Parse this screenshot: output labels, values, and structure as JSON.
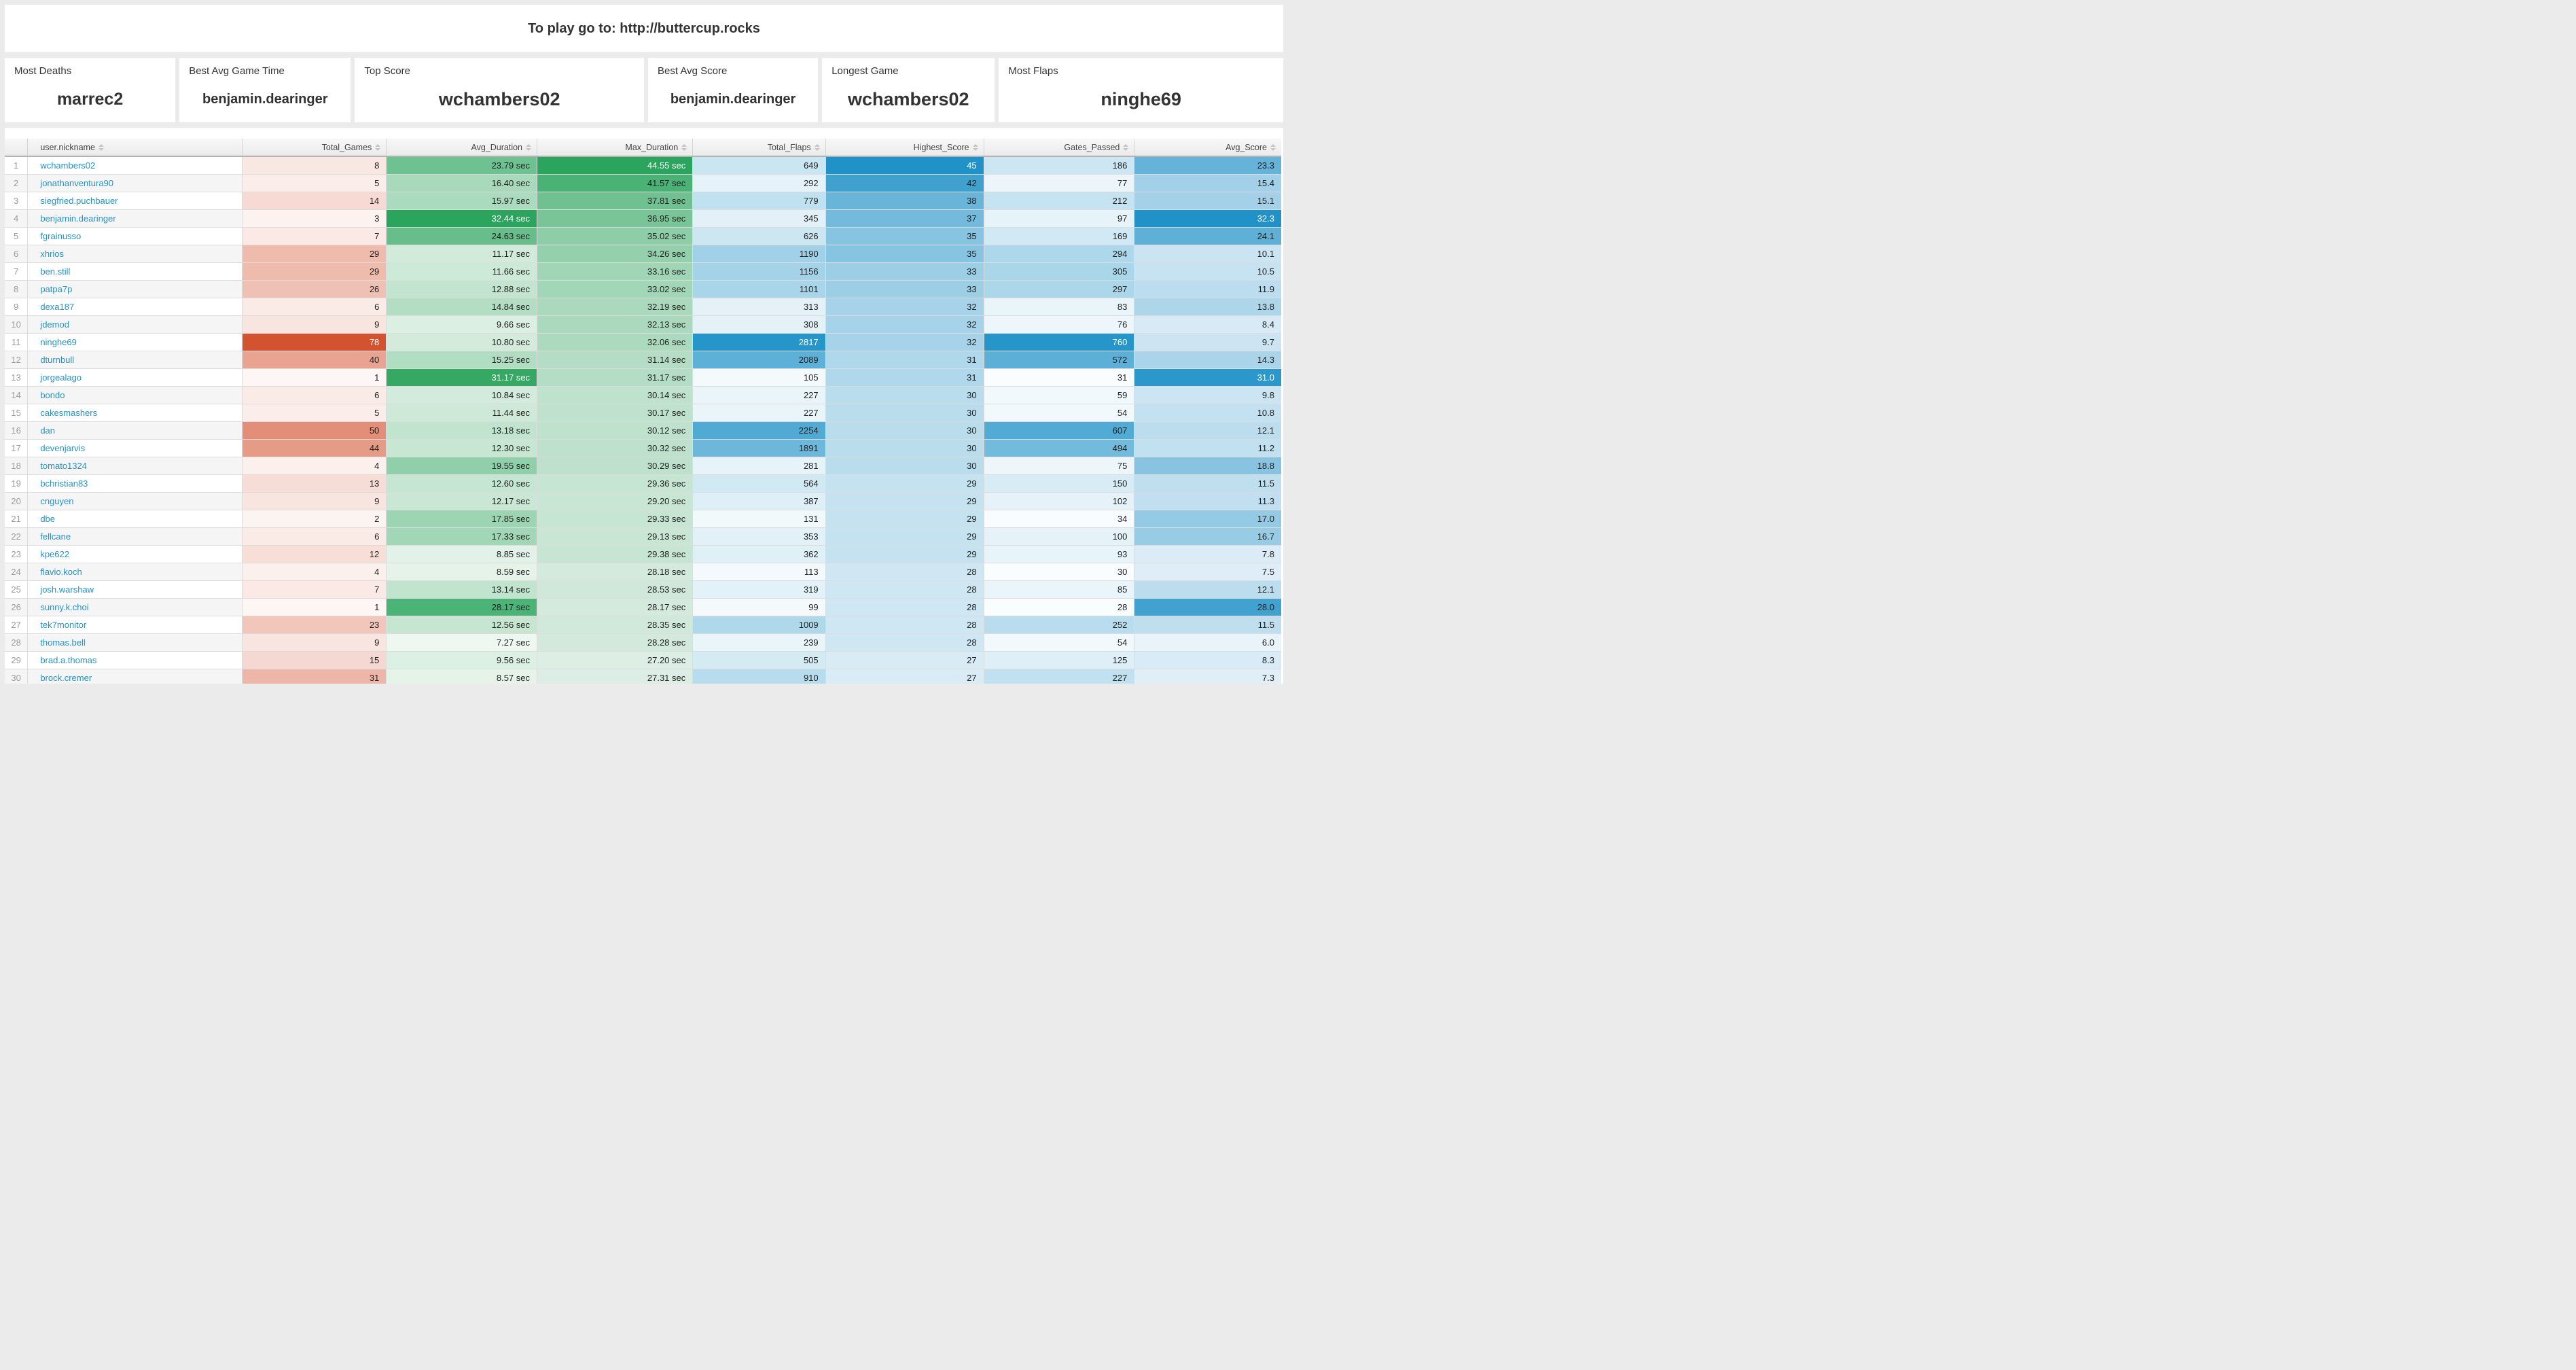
{
  "banner": {
    "text": "To play go to: http://buttercup.rocks"
  },
  "cards": [
    {
      "label": "Most Deaths",
      "value": "marrec2"
    },
    {
      "label": "Best Avg Game Time",
      "value": "benjamin.dearinger"
    },
    {
      "label": "Top Score",
      "value": "wchambers02"
    },
    {
      "label": "Best Avg Score",
      "value": "benjamin.dearinger"
    },
    {
      "label": "Longest Game",
      "value": "wchambers02"
    },
    {
      "label": "Most Flaps",
      "value": "ninghe69"
    }
  ],
  "table": {
    "white_text_threshold": 0.9,
    "columns": [
      {
        "key": "rank",
        "label": "",
        "align": "center",
        "type": "rank"
      },
      {
        "key": "nickname",
        "label": "user.nickname",
        "align": "left",
        "type": "link"
      },
      {
        "key": "total_games",
        "label": "Total_Games",
        "align": "right",
        "format": "int",
        "heat": {
          "min": 1,
          "max": 78,
          "light": "#fdf6f4",
          "dark": "#d35331"
        }
      },
      {
        "key": "avg_duration",
        "label": "Avg_Duration",
        "align": "right",
        "format": "duration",
        "heat": {
          "min": 7.27,
          "max": 32.44,
          "light": "#eff7f1",
          "dark": "#2ba55d"
        }
      },
      {
        "key": "max_duration",
        "label": "Max_Duration",
        "align": "right",
        "format": "duration",
        "heat": {
          "min": 27.2,
          "max": 44.55,
          "light": "#ddeee4",
          "dark": "#2ba55d"
        }
      },
      {
        "key": "total_flaps",
        "label": "Total_Flaps",
        "align": "right",
        "format": "int",
        "heat": {
          "min": 99,
          "max": 2817,
          "light": "#f4fafc",
          "dark": "#2695c9"
        }
      },
      {
        "key": "highest_score",
        "label": "Highest_Score",
        "align": "right",
        "format": "int",
        "heat": {
          "min": 27,
          "max": 45,
          "light": "#d9ecf6",
          "dark": "#2192c7"
        }
      },
      {
        "key": "gates_passed",
        "label": "Gates_Passed",
        "align": "right",
        "format": "int",
        "heat": {
          "min": 28,
          "max": 760,
          "light": "#fafdfe",
          "dark": "#2695c9"
        }
      },
      {
        "key": "avg_score",
        "label": "Avg_Score",
        "align": "right",
        "format": "one_dec",
        "heat": {
          "min": 6.0,
          "max": 32.3,
          "light": "#e9f3fa",
          "dark": "#2192c7"
        }
      }
    ],
    "rows": [
      {
        "rank": 1,
        "nickname": "wchambers02",
        "total_games": 8,
        "avg_duration": 23.79,
        "max_duration": 44.55,
        "total_flaps": 649,
        "highest_score": 45,
        "gates_passed": 186,
        "avg_score": 23.3
      },
      {
        "rank": 2,
        "nickname": "jonathanventura90",
        "total_games": 5,
        "avg_duration": 16.4,
        "max_duration": 41.57,
        "total_flaps": 292,
        "highest_score": 42,
        "gates_passed": 77,
        "avg_score": 15.4
      },
      {
        "rank": 3,
        "nickname": "siegfried.puchbauer",
        "total_games": 14,
        "avg_duration": 15.97,
        "max_duration": 37.81,
        "total_flaps": 779,
        "highest_score": 38,
        "gates_passed": 212,
        "avg_score": 15.1
      },
      {
        "rank": 4,
        "nickname": "benjamin.dearinger",
        "total_games": 3,
        "avg_duration": 32.44,
        "max_duration": 36.95,
        "total_flaps": 345,
        "highest_score": 37,
        "gates_passed": 97,
        "avg_score": 32.3
      },
      {
        "rank": 5,
        "nickname": "fgrainusso",
        "total_games": 7,
        "avg_duration": 24.63,
        "max_duration": 35.02,
        "total_flaps": 626,
        "highest_score": 35,
        "gates_passed": 169,
        "avg_score": 24.1
      },
      {
        "rank": 6,
        "nickname": "xhrios",
        "total_games": 29,
        "avg_duration": 11.17,
        "max_duration": 34.26,
        "total_flaps": 1190,
        "highest_score": 35,
        "gates_passed": 294,
        "avg_score": 10.1
      },
      {
        "rank": 7,
        "nickname": "ben.still",
        "total_games": 29,
        "avg_duration": 11.66,
        "max_duration": 33.16,
        "total_flaps": 1156,
        "highest_score": 33,
        "gates_passed": 305,
        "avg_score": 10.5
      },
      {
        "rank": 8,
        "nickname": "patpa7p",
        "total_games": 26,
        "avg_duration": 12.88,
        "max_duration": 33.02,
        "total_flaps": 1101,
        "highest_score": 33,
        "gates_passed": 297,
        "avg_score": 11.9
      },
      {
        "rank": 9,
        "nickname": "dexa187",
        "total_games": 6,
        "avg_duration": 14.84,
        "max_duration": 32.19,
        "total_flaps": 313,
        "highest_score": 32,
        "gates_passed": 83,
        "avg_score": 13.8
      },
      {
        "rank": 10,
        "nickname": "jdemod",
        "total_games": 9,
        "avg_duration": 9.66,
        "max_duration": 32.13,
        "total_flaps": 308,
        "highest_score": 32,
        "gates_passed": 76,
        "avg_score": 8.4
      },
      {
        "rank": 11,
        "nickname": "ninghe69",
        "total_games": 78,
        "avg_duration": 10.8,
        "max_duration": 32.06,
        "total_flaps": 2817,
        "highest_score": 32,
        "gates_passed": 760,
        "avg_score": 9.7
      },
      {
        "rank": 12,
        "nickname": "dturnbull",
        "total_games": 40,
        "avg_duration": 15.25,
        "max_duration": 31.14,
        "total_flaps": 2089,
        "highest_score": 31,
        "gates_passed": 572,
        "avg_score": 14.3
      },
      {
        "rank": 13,
        "nickname": "jorgealago",
        "total_games": 1,
        "avg_duration": 31.17,
        "max_duration": 31.17,
        "total_flaps": 105,
        "highest_score": 31,
        "gates_passed": 31,
        "avg_score": 31.0
      },
      {
        "rank": 14,
        "nickname": "bondo",
        "total_games": 6,
        "avg_duration": 10.84,
        "max_duration": 30.14,
        "total_flaps": 227,
        "highest_score": 30,
        "gates_passed": 59,
        "avg_score": 9.8
      },
      {
        "rank": 15,
        "nickname": "cakesmashers",
        "total_games": 5,
        "avg_duration": 11.44,
        "max_duration": 30.17,
        "total_flaps": 227,
        "highest_score": 30,
        "gates_passed": 54,
        "avg_score": 10.8
      },
      {
        "rank": 16,
        "nickname": "dan",
        "total_games": 50,
        "avg_duration": 13.18,
        "max_duration": 30.12,
        "total_flaps": 2254,
        "highest_score": 30,
        "gates_passed": 607,
        "avg_score": 12.1
      },
      {
        "rank": 17,
        "nickname": "devenjarvis",
        "total_games": 44,
        "avg_duration": 12.3,
        "max_duration": 30.32,
        "total_flaps": 1891,
        "highest_score": 30,
        "gates_passed": 494,
        "avg_score": 11.2
      },
      {
        "rank": 18,
        "nickname": "tomato1324",
        "total_games": 4,
        "avg_duration": 19.55,
        "max_duration": 30.29,
        "total_flaps": 281,
        "highest_score": 30,
        "gates_passed": 75,
        "avg_score": 18.8
      },
      {
        "rank": 19,
        "nickname": "bchristian83",
        "total_games": 13,
        "avg_duration": 12.6,
        "max_duration": 29.36,
        "total_flaps": 564,
        "highest_score": 29,
        "gates_passed": 150,
        "avg_score": 11.5
      },
      {
        "rank": 20,
        "nickname": "cnguyen",
        "total_games": 9,
        "avg_duration": 12.17,
        "max_duration": 29.2,
        "total_flaps": 387,
        "highest_score": 29,
        "gates_passed": 102,
        "avg_score": 11.3
      },
      {
        "rank": 21,
        "nickname": "dbe",
        "total_games": 2,
        "avg_duration": 17.85,
        "max_duration": 29.33,
        "total_flaps": 131,
        "highest_score": 29,
        "gates_passed": 34,
        "avg_score": 17.0
      },
      {
        "rank": 22,
        "nickname": "fellcane",
        "total_games": 6,
        "avg_duration": 17.33,
        "max_duration": 29.13,
        "total_flaps": 353,
        "highest_score": 29,
        "gates_passed": 100,
        "avg_score": 16.7
      },
      {
        "rank": 23,
        "nickname": "kpe622",
        "total_games": 12,
        "avg_duration": 8.85,
        "max_duration": 29.38,
        "total_flaps": 362,
        "highest_score": 29,
        "gates_passed": 93,
        "avg_score": 7.8
      },
      {
        "rank": 24,
        "nickname": "flavio.koch",
        "total_games": 4,
        "avg_duration": 8.59,
        "max_duration": 28.18,
        "total_flaps": 113,
        "highest_score": 28,
        "gates_passed": 30,
        "avg_score": 7.5
      },
      {
        "rank": 25,
        "nickname": "josh.warshaw",
        "total_games": 7,
        "avg_duration": 13.14,
        "max_duration": 28.53,
        "total_flaps": 319,
        "highest_score": 28,
        "gates_passed": 85,
        "avg_score": 12.1
      },
      {
        "rank": 26,
        "nickname": "sunny.k.choi",
        "total_games": 1,
        "avg_duration": 28.17,
        "max_duration": 28.17,
        "total_flaps": 99,
        "highest_score": 28,
        "gates_passed": 28,
        "avg_score": 28.0
      },
      {
        "rank": 27,
        "nickname": "tek7monitor",
        "total_games": 23,
        "avg_duration": 12.56,
        "max_duration": 28.35,
        "total_flaps": 1009,
        "highest_score": 28,
        "gates_passed": 252,
        "avg_score": 11.5
      },
      {
        "rank": 28,
        "nickname": "thomas.bell",
        "total_games": 9,
        "avg_duration": 7.27,
        "max_duration": 28.28,
        "total_flaps": 239,
        "highest_score": 28,
        "gates_passed": 54,
        "avg_score": 6.0
      },
      {
        "rank": 29,
        "nickname": "brad.a.thomas",
        "total_games": 15,
        "avg_duration": 9.56,
        "max_duration": 27.2,
        "total_flaps": 505,
        "highest_score": 27,
        "gates_passed": 125,
        "avg_score": 8.3
      },
      {
        "rank": 30,
        "nickname": "brock.cremer",
        "total_games": 31,
        "avg_duration": 8.57,
        "max_duration": 27.31,
        "total_flaps": 910,
        "highest_score": 27,
        "gates_passed": 227,
        "avg_score": 7.3
      }
    ]
  }
}
